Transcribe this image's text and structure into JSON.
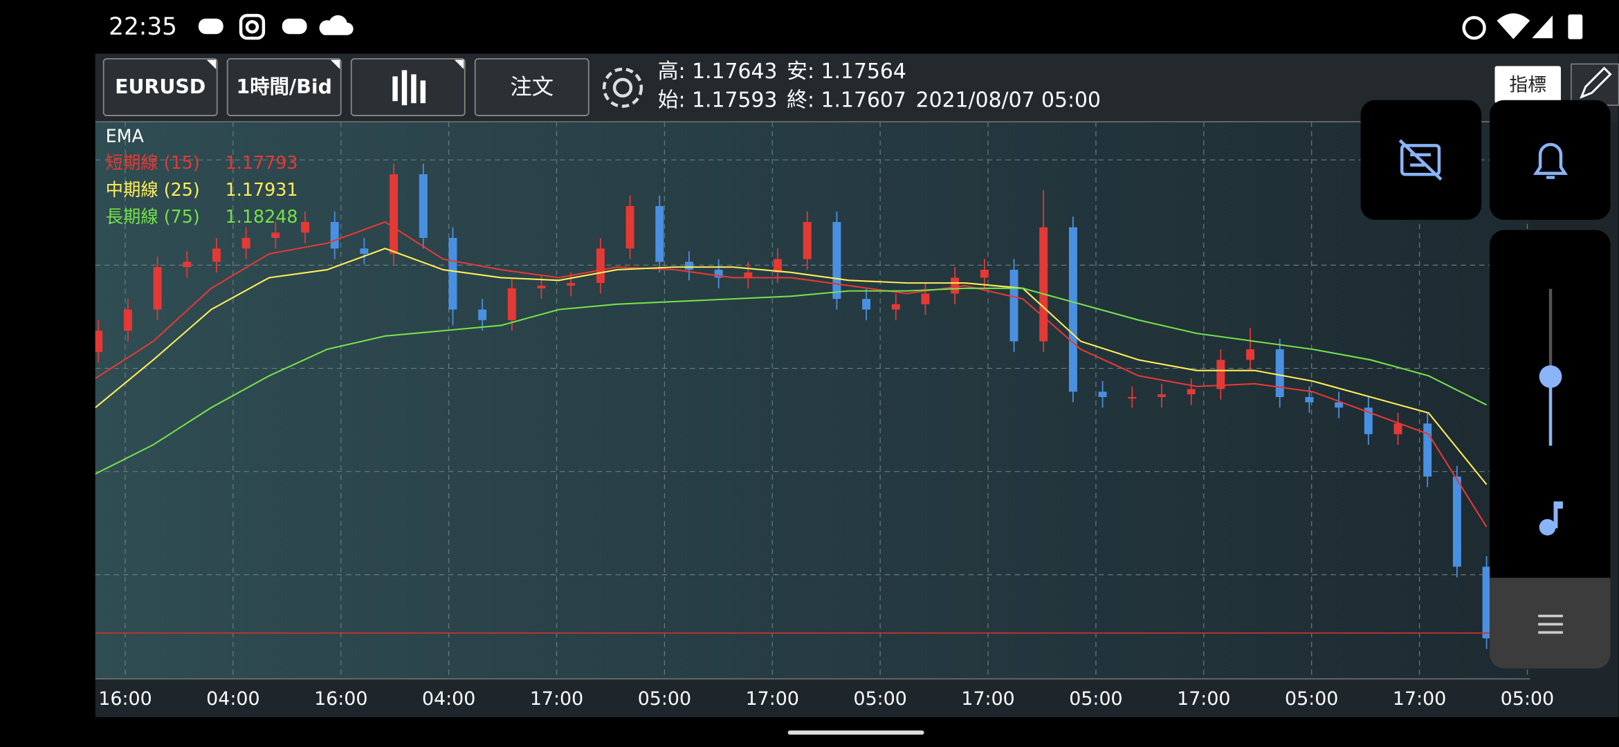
{
  "status_bar": {
    "time": "22:35"
  },
  "toolbar": {
    "symbol": "EURUSD",
    "timeframe": "1時間/Bid",
    "order": "注文",
    "indicator_button": "指標"
  },
  "ohlc_info": {
    "high": "高: 1.17643",
    "low": "安: 1.17564",
    "open": "始: 1.17593",
    "close": "終: 1.17607",
    "datetime": "2021/08/07 05:00"
  },
  "chart_data": {
    "type": "candlestick",
    "indicator": "EMA",
    "grid": true,
    "ylim": [
      1.17217,
      1.19318
    ],
    "xticks": [
      "16:00",
      "04:00",
      "16:00",
      "04:00",
      "17:00",
      "05:00",
      "17:00",
      "05:00",
      "17:00",
      "05:00",
      "17:00",
      "05:00",
      "17:00",
      "05:00"
    ],
    "up_color": "#e53935",
    "down_color": "#4a90e2",
    "price_line": 1.1739,
    "price_line_color": "#d32f2f",
    "candles": {
      "open": [
        1.1845,
        1.1853,
        1.1861,
        1.1877,
        1.1879,
        1.1884,
        1.1888,
        1.189,
        1.1894,
        1.1884,
        1.1882,
        1.1912,
        1.1888,
        1.1861,
        1.1857,
        1.1869,
        1.187,
        1.1871,
        1.1884,
        1.19,
        1.1879,
        1.1876,
        1.1873,
        1.1875,
        1.188,
        1.1894,
        1.1865,
        1.1861,
        1.1863,
        1.1867,
        1.1873,
        1.1876,
        1.1849,
        1.1892,
        1.183,
        1.1828,
        1.1828,
        1.1829,
        1.1831,
        1.1842,
        1.1846,
        1.1828,
        1.1826,
        1.1824,
        1.1814,
        1.1818,
        1.1798,
        1.1764
      ],
      "high": [
        1.1857,
        1.1865,
        1.1881,
        1.1883,
        1.1888,
        1.1892,
        1.1894,
        1.1898,
        1.1898,
        1.1888,
        1.1916,
        1.1916,
        1.1892,
        1.1865,
        1.1873,
        1.1874,
        1.1875,
        1.1888,
        1.1904,
        1.1904,
        1.1883,
        1.188,
        1.1879,
        1.1884,
        1.1898,
        1.1898,
        1.1869,
        1.1867,
        1.1871,
        1.1877,
        1.188,
        1.188,
        1.1906,
        1.1896,
        1.1834,
        1.1832,
        1.1833,
        1.1835,
        1.1846,
        1.1854,
        1.185,
        1.1832,
        1.183,
        1.1828,
        1.1822,
        1.1822,
        1.1802,
        1.1768
      ],
      "low": [
        1.1841,
        1.1849,
        1.1857,
        1.1873,
        1.1875,
        1.188,
        1.1884,
        1.1886,
        1.188,
        1.1878,
        1.1878,
        1.1884,
        1.1855,
        1.1853,
        1.1853,
        1.1865,
        1.1866,
        1.1867,
        1.188,
        1.1875,
        1.1872,
        1.1869,
        1.1869,
        1.1871,
        1.1876,
        1.1861,
        1.1857,
        1.1857,
        1.1859,
        1.1863,
        1.1869,
        1.1845,
        1.1845,
        1.1826,
        1.1824,
        1.1824,
        1.1824,
        1.1825,
        1.1827,
        1.1838,
        1.1824,
        1.1822,
        1.182,
        1.181,
        1.181,
        1.1794,
        1.176,
        1.1733
      ],
      "close": [
        1.1853,
        1.1861,
        1.1877,
        1.1879,
        1.1884,
        1.1888,
        1.189,
        1.1894,
        1.1884,
        1.1882,
        1.1912,
        1.1888,
        1.1861,
        1.1857,
        1.1869,
        1.187,
        1.1871,
        1.1884,
        1.19,
        1.1879,
        1.1876,
        1.1873,
        1.1875,
        1.188,
        1.1894,
        1.1865,
        1.1861,
        1.1863,
        1.1867,
        1.1873,
        1.1876,
        1.1849,
        1.1892,
        1.183,
        1.1828,
        1.1828,
        1.1829,
        1.1831,
        1.1842,
        1.1846,
        1.1828,
        1.1826,
        1.1824,
        1.1814,
        1.1818,
        1.1798,
        1.1764,
        1.1737
      ]
    },
    "series": [
      {
        "name": "短期線 (15)",
        "last_value": 1.17793,
        "color": "#e53935",
        "values": [
          1.1835,
          1.1849,
          1.1869,
          1.1882,
          1.1886,
          1.1894,
          1.188,
          1.1876,
          1.1873,
          1.1877,
          1.1876,
          1.1873,
          1.1873,
          1.187,
          1.1867,
          1.187,
          1.1865,
          1.1846,
          1.1836,
          1.1832,
          1.1833,
          1.183,
          1.1822,
          1.1814,
          1.1779
        ]
      },
      {
        "name": "中期線 (25)",
        "last_value": 1.17931,
        "color": "#ffee58",
        "values": [
          1.1824,
          1.1842,
          1.1861,
          1.1873,
          1.1876,
          1.1884,
          1.1876,
          1.1873,
          1.1872,
          1.1876,
          1.1877,
          1.1877,
          1.1875,
          1.1872,
          1.1871,
          1.1871,
          1.1869,
          1.1849,
          1.1842,
          1.1838,
          1.1838,
          1.1834,
          1.1828,
          1.1822,
          1.1795
        ]
      },
      {
        "name": "長期線 (75)",
        "last_value": 1.18248,
        "color": "#76e04a",
        "values": [
          1.1799,
          1.181,
          1.1824,
          1.1836,
          1.1846,
          1.1851,
          1.1853,
          1.1855,
          1.1861,
          1.1863,
          1.1864,
          1.1865,
          1.1866,
          1.1868,
          1.1868,
          1.1869,
          1.1869,
          1.1863,
          1.1857,
          1.1852,
          1.1849,
          1.1846,
          1.1842,
          1.1836,
          1.1825
        ]
      }
    ]
  }
}
